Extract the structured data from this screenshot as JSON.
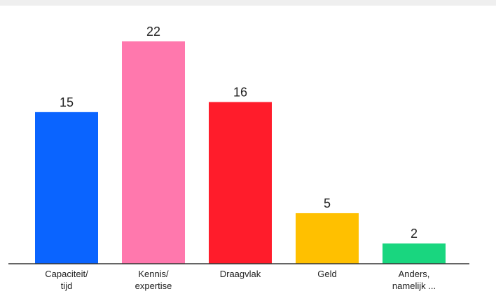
{
  "chart_data": {
    "type": "bar",
    "title": "",
    "xlabel": "",
    "ylabel": "",
    "ylim": [
      0,
      22
    ],
    "grid": false,
    "categories": [
      [
        "Capaciteit/",
        "tijd"
      ],
      [
        "Kennis/",
        "expertise"
      ],
      [
        "Draagvlak"
      ],
      [
        "Geld"
      ],
      [
        "Anders,",
        "namelijk ..."
      ]
    ],
    "values": [
      15,
      22,
      16,
      5,
      2
    ],
    "colors": [
      "#0a64ff",
      "#ff78ad",
      "#ff1c2b",
      "#ffc000",
      "#19d67f"
    ],
    "value_labels": [
      "15",
      "22",
      "16",
      "5",
      "2"
    ]
  }
}
